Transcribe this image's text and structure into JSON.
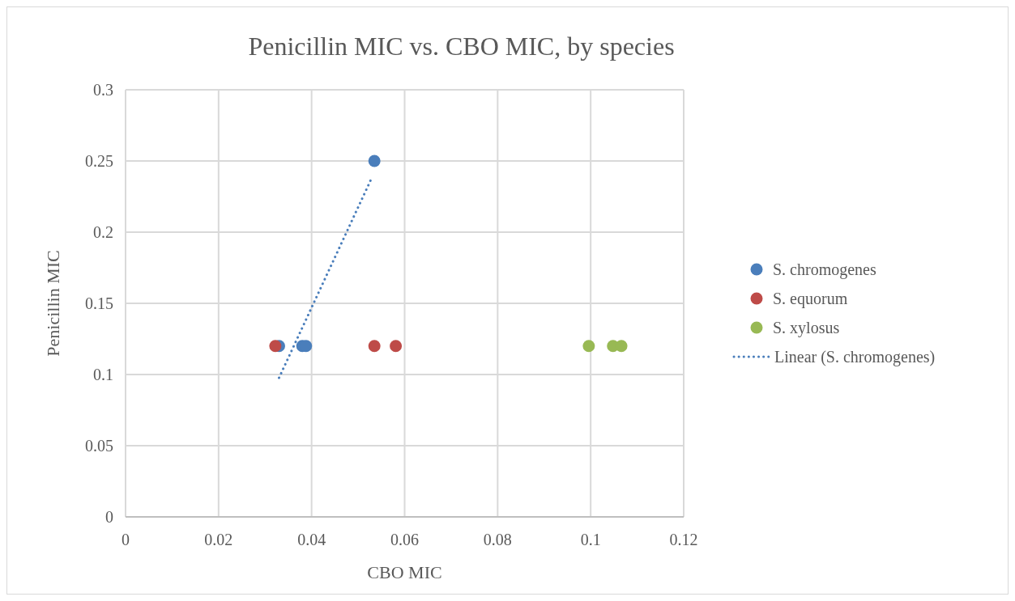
{
  "chart_data": {
    "type": "scatter",
    "title": "Penicillin MIC vs. CBO MIC, by species",
    "xlabel": "CBO MIC",
    "ylabel": "Penicillin MIC",
    "xlim": [
      0,
      0.12
    ],
    "xticks": [
      0,
      0.02,
      0.04,
      0.06,
      0.08,
      0.1,
      0.12
    ],
    "ylim": [
      0,
      0.3
    ],
    "yticks": [
      0,
      0.05,
      0.1,
      0.15,
      0.2,
      0.25,
      0.3
    ],
    "grid": true,
    "legend": "right",
    "marker": "circle",
    "series": [
      {
        "name": "S. chromogenes",
        "color": "#4a7ebb",
        "x": [
          0.033,
          0.038,
          0.0388,
          0.0535
        ],
        "values": [
          0.12,
          0.12,
          0.12,
          0.25
        ]
      },
      {
        "name": "S. equorum",
        "color": "#be4b48",
        "x": [
          0.0322,
          0.0535,
          0.0581
        ],
        "values": [
          0.12,
          0.12,
          0.12
        ]
      },
      {
        "name": "S. xylosus",
        "color": "#98b954",
        "x": [
          0.0996,
          0.1048,
          0.1066
        ],
        "values": [
          0.12,
          0.12,
          0.12
        ]
      },
      {
        "name": "Linear (S. chromogenes)",
        "type": "line",
        "line_style": "dotted",
        "marker": "none",
        "color": "#4a7ebb",
        "x": [
          0.033,
          0.053
        ],
        "values": [
          0.0977,
          0.2386
        ]
      }
    ]
  }
}
